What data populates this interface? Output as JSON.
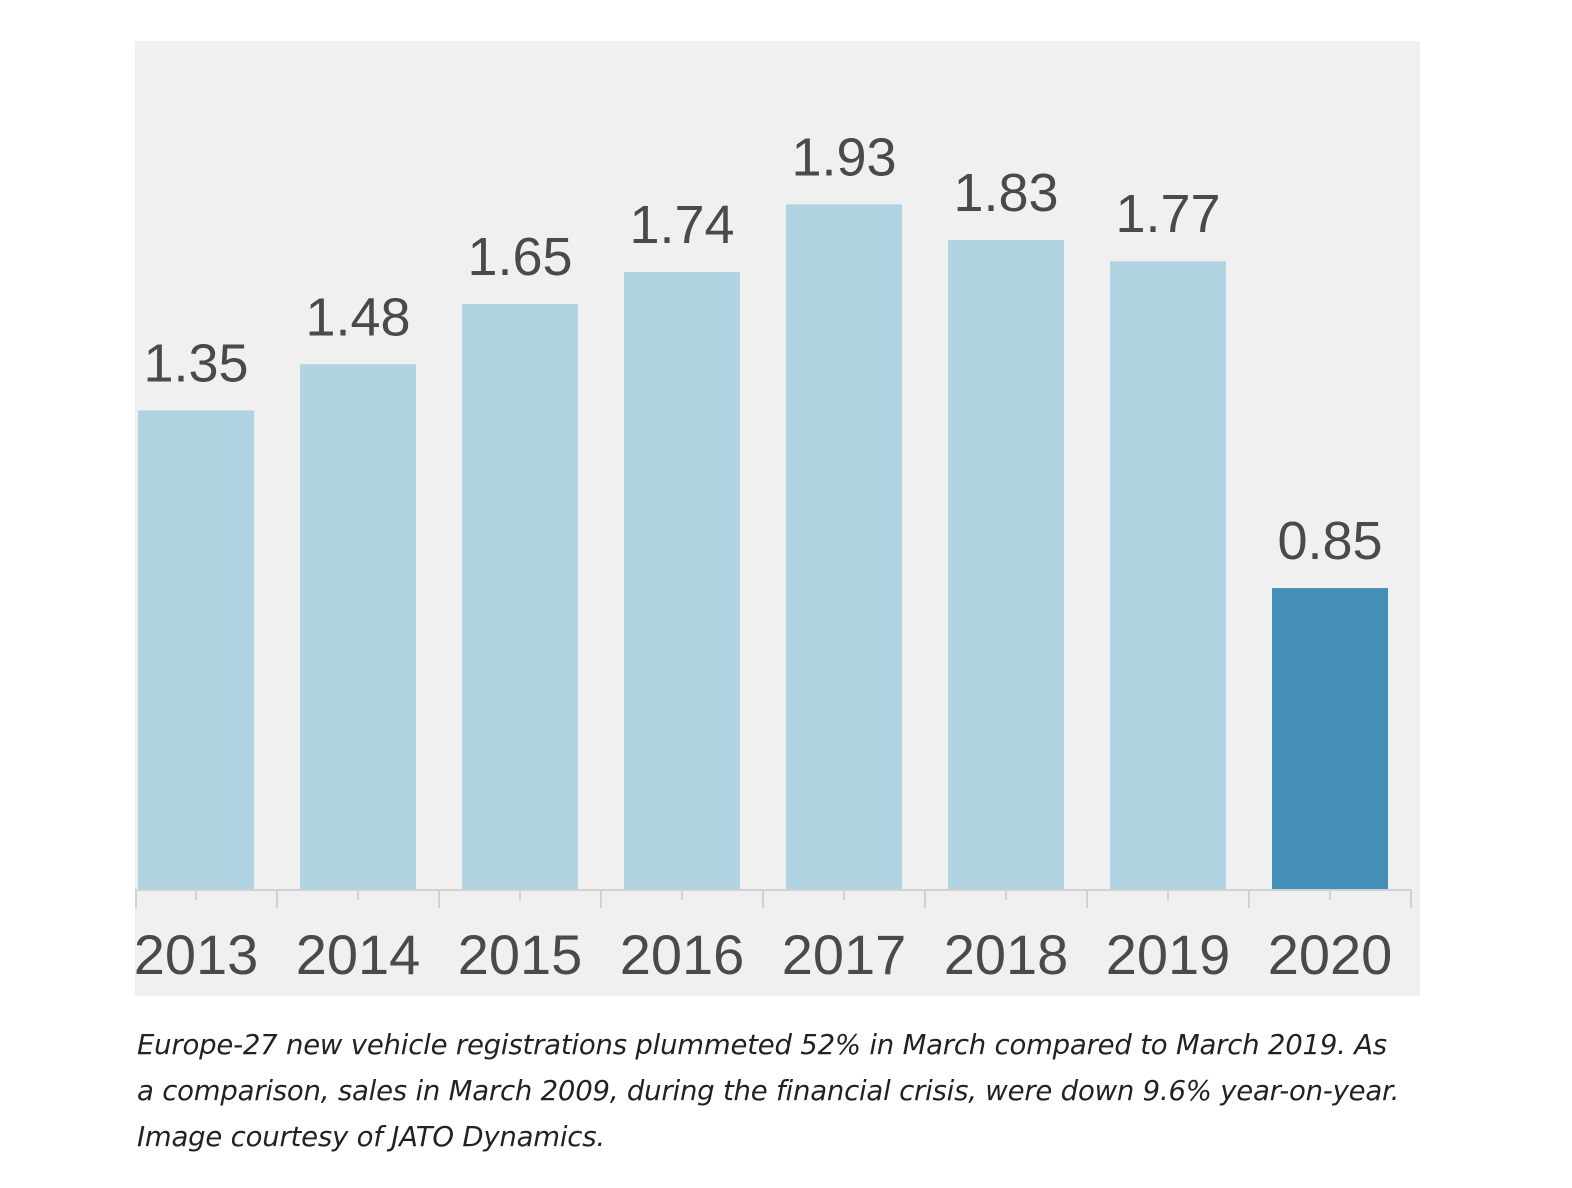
{
  "chart_data": {
    "type": "bar",
    "categories": [
      "2013",
      "2014",
      "2015",
      "2016",
      "2017",
      "2018",
      "2019",
      "2020"
    ],
    "values": [
      1.35,
      1.48,
      1.65,
      1.74,
      1.93,
      1.83,
      1.77,
      0.85
    ],
    "value_labels": [
      "1.35",
      "1.48",
      "1.65",
      "1.74",
      "1.93",
      "1.83",
      "1.77",
      "0.85"
    ],
    "highlight_index": 7,
    "ylim": [
      0,
      2.39
    ],
    "grid": false,
    "legend": "none",
    "colors": {
      "bar": "#b1d4e3",
      "highlight": "#448fb6",
      "axis": "#d2d2d2",
      "panel": "#f0f0f0",
      "text": "#4a4a4a"
    }
  },
  "caption": {
    "line1": "Europe-27 new vehicle registrations plummeted 52% in March compared to March 2019. As",
    "line2": "a comparison, sales in March 2009, during the financial crisis, were down 9.6% year-on-year.",
    "line3": "Image courtesy of JATO Dynamics."
  }
}
